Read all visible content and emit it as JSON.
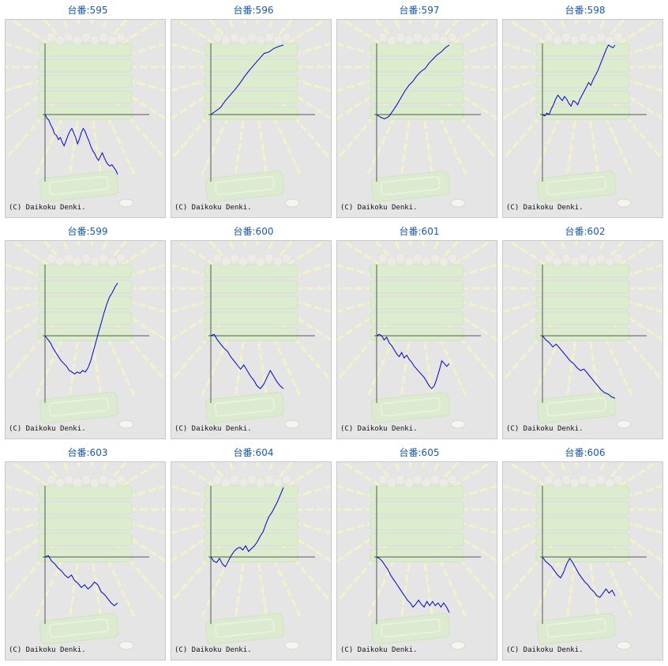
{
  "label_prefix": "台番:",
  "copyright": "(C) Daikoku Denki.",
  "colors": {
    "line": "#0000cc",
    "axis": "#555555",
    "background": "#e5e5e5",
    "title": "#1a5aa8"
  },
  "chart_data": [
    {
      "type": "line",
      "title": "台番:595",
      "ylim": [
        -1,
        1
      ],
      "values": [
        0,
        -0.05,
        -0.08,
        -0.15,
        -0.2,
        -0.28,
        -0.3,
        -0.36,
        -0.33,
        -0.4,
        -0.45,
        -0.38,
        -0.3,
        -0.24,
        -0.2,
        -0.26,
        -0.33,
        -0.42,
        -0.35,
        -0.26,
        -0.2,
        -0.24,
        -0.32,
        -0.38,
        -0.46,
        -0.52,
        -0.56,
        -0.62,
        -0.66,
        -0.6,
        -0.55,
        -0.62,
        -0.68,
        -0.72,
        -0.74,
        -0.72,
        -0.76,
        -0.8,
        -0.86
      ]
    },
    {
      "type": "line",
      "title": "台番:596",
      "ylim": [
        -1,
        1
      ],
      "values": [
        0,
        0.05,
        0.1,
        0.2,
        0.28,
        0.36,
        0.45,
        0.55,
        0.64,
        0.72,
        0.8,
        0.88,
        0.9,
        0.95,
        0.98,
        1.0
      ]
    },
    {
      "type": "line",
      "title": "台番:597",
      "ylim": [
        -1,
        1
      ],
      "values": [
        0,
        -0.04,
        -0.06,
        -0.03,
        0.05,
        0.14,
        0.24,
        0.34,
        0.42,
        0.48,
        0.56,
        0.62,
        0.66,
        0.74,
        0.8,
        0.86,
        0.9,
        0.96,
        1.0
      ]
    },
    {
      "type": "line",
      "title": "台番:598",
      "ylim": [
        -1,
        1
      ],
      "values": [
        0,
        -0.02,
        0.02,
        0.0,
        0.08,
        0.14,
        0.22,
        0.28,
        0.24,
        0.2,
        0.26,
        0.22,
        0.16,
        0.12,
        0.2,
        0.18,
        0.14,
        0.22,
        0.28,
        0.34,
        0.4,
        0.46,
        0.42,
        0.5,
        0.56,
        0.62,
        0.7,
        0.78,
        0.86,
        0.94,
        1.0,
        0.98,
        0.96,
        1.0
      ]
    },
    {
      "type": "line",
      "title": "台番:599",
      "ylim": [
        -1,
        1
      ],
      "values": [
        0,
        -0.05,
        -0.1,
        -0.18,
        -0.24,
        -0.3,
        -0.36,
        -0.4,
        -0.44,
        -0.5,
        -0.52,
        -0.55,
        -0.52,
        -0.54,
        -0.5,
        -0.52,
        -0.46,
        -0.36,
        -0.22,
        -0.08,
        0.06,
        0.2,
        0.34,
        0.46,
        0.56,
        0.62,
        0.7,
        0.76
      ]
    },
    {
      "type": "line",
      "title": "台番:600",
      "ylim": [
        -1,
        1
      ],
      "values": [
        0,
        0.02,
        -0.06,
        -0.12,
        -0.18,
        -0.22,
        -0.3,
        -0.36,
        -0.42,
        -0.48,
        -0.42,
        -0.5,
        -0.58,
        -0.64,
        -0.72,
        -0.76,
        -0.7,
        -0.6,
        -0.5,
        -0.58,
        -0.66,
        -0.72,
        -0.76
      ]
    },
    {
      "type": "line",
      "title": "台番:601",
      "ylim": [
        -1,
        1
      ],
      "values": [
        0,
        0.02,
        0.0,
        -0.06,
        -0.02,
        -0.1,
        -0.14,
        -0.2,
        -0.26,
        -0.3,
        -0.24,
        -0.32,
        -0.28,
        -0.34,
        -0.38,
        -0.44,
        -0.48,
        -0.52,
        -0.56,
        -0.6,
        -0.66,
        -0.72,
        -0.76,
        -0.72,
        -0.62,
        -0.5,
        -0.36,
        -0.4,
        -0.44,
        -0.4
      ]
    },
    {
      "type": "line",
      "title": "台番:602",
      "ylim": [
        -1,
        1
      ],
      "values": [
        0,
        -0.06,
        -0.1,
        -0.16,
        -0.12,
        -0.18,
        -0.24,
        -0.3,
        -0.36,
        -0.4,
        -0.46,
        -0.5,
        -0.48,
        -0.54,
        -0.6,
        -0.66,
        -0.72,
        -0.78,
        -0.82,
        -0.84,
        -0.88,
        -0.9
      ]
    },
    {
      "type": "line",
      "title": "台番:603",
      "ylim": [
        -1,
        1
      ],
      "values": [
        0,
        0.02,
        -0.06,
        -0.1,
        -0.16,
        -0.2,
        -0.26,
        -0.3,
        -0.26,
        -0.34,
        -0.38,
        -0.44,
        -0.4,
        -0.46,
        -0.42,
        -0.36,
        -0.4,
        -0.5,
        -0.54,
        -0.6,
        -0.66,
        -0.7,
        -0.66
      ]
    },
    {
      "type": "line",
      "title": "台番:604",
      "ylim": [
        -1,
        1
      ],
      "values": [
        0,
        -0.06,
        -0.08,
        -0.02,
        -0.1,
        -0.14,
        -0.06,
        0.02,
        0.08,
        0.12,
        0.14,
        0.1,
        0.16,
        0.08,
        0.12,
        0.16,
        0.22,
        0.3,
        0.36,
        0.48,
        0.58,
        0.64,
        0.72,
        0.8,
        0.9,
        1.0
      ]
    },
    {
      "type": "line",
      "title": "台番:605",
      "ylim": [
        -1,
        1
      ],
      "values": [
        0,
        -0.02,
        -0.06,
        -0.12,
        -0.18,
        -0.26,
        -0.32,
        -0.38,
        -0.44,
        -0.5,
        -0.56,
        -0.62,
        -0.66,
        -0.72,
        -0.68,
        -0.62,
        -0.68,
        -0.72,
        -0.64,
        -0.7,
        -0.64,
        -0.7,
        -0.66,
        -0.72,
        -0.66,
        -0.72,
        -0.8
      ]
    },
    {
      "type": "line",
      "title": "台番:606",
      "ylim": [
        -1,
        1
      ],
      "values": [
        0,
        -0.06,
        -0.1,
        -0.14,
        -0.2,
        -0.26,
        -0.3,
        -0.22,
        -0.1,
        -0.02,
        -0.08,
        -0.16,
        -0.24,
        -0.3,
        -0.36,
        -0.4,
        -0.46,
        -0.5,
        -0.56,
        -0.58,
        -0.52,
        -0.46,
        -0.52,
        -0.48,
        -0.56
      ]
    }
  ]
}
